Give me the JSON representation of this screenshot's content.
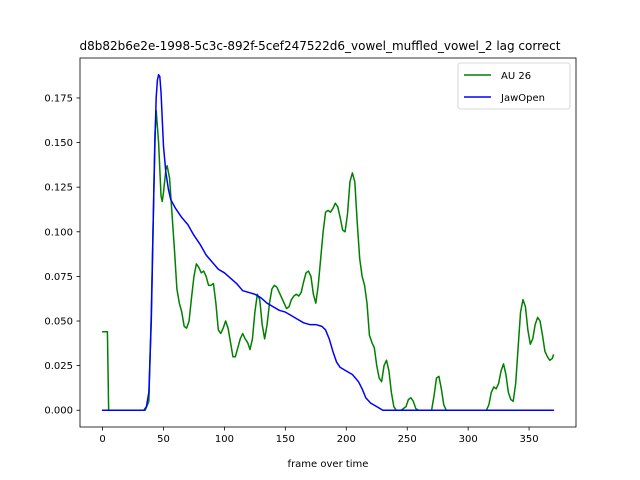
{
  "chart_data": {
    "type": "line",
    "title": "d8b82b6e2e-1998-5c3c-892f-5cef247522d6_vowel_muffled_vowel_2  lag correct",
    "xlabel": "frame over time",
    "ylabel": "",
    "xlim": [
      -18.5,
      388.5
    ],
    "ylim": [
      -0.0094,
      0.1974
    ],
    "x_ticks": [
      0,
      50,
      100,
      150,
      200,
      250,
      300,
      350
    ],
    "y_ticks": [
      0.0,
      0.025,
      0.05,
      0.075,
      0.1,
      0.125,
      0.15,
      0.175
    ],
    "y_tick_labels": [
      "0.000",
      "0.025",
      "0.050",
      "0.075",
      "0.100",
      "0.125",
      "0.150",
      "0.175"
    ],
    "grid": false,
    "legend_position": "upper-right",
    "series": [
      {
        "name": "AU 26",
        "color": "#008000",
        "points": [
          [
            0,
            0.044
          ],
          [
            4,
            0.044
          ],
          [
            5,
            0.0
          ],
          [
            10,
            0.0
          ],
          [
            20,
            0.0
          ],
          [
            30,
            0.0
          ],
          [
            35,
            0.0
          ],
          [
            38,
            0.005
          ],
          [
            40,
            0.055
          ],
          [
            42,
            0.12
          ],
          [
            43,
            0.155
          ],
          [
            44,
            0.168
          ],
          [
            46,
            0.15
          ],
          [
            48,
            0.12
          ],
          [
            49,
            0.117
          ],
          [
            50,
            0.122
          ],
          [
            52,
            0.135
          ],
          [
            53,
            0.137
          ],
          [
            55,
            0.13
          ],
          [
            57,
            0.11
          ],
          [
            59,
            0.09
          ],
          [
            61,
            0.068
          ],
          [
            63,
            0.06
          ],
          [
            65,
            0.055
          ],
          [
            67,
            0.047
          ],
          [
            69,
            0.046
          ],
          [
            71,
            0.05
          ],
          [
            73,
            0.063
          ],
          [
            75,
            0.075
          ],
          [
            77,
            0.082
          ],
          [
            79,
            0.08
          ],
          [
            81,
            0.077
          ],
          [
            83,
            0.078
          ],
          [
            85,
            0.075
          ],
          [
            87,
            0.07
          ],
          [
            89,
            0.07
          ],
          [
            91,
            0.071
          ],
          [
            93,
            0.06
          ],
          [
            95,
            0.045
          ],
          [
            97,
            0.043
          ],
          [
            99,
            0.046
          ],
          [
            101,
            0.05
          ],
          [
            103,
            0.046
          ],
          [
            105,
            0.038
          ],
          [
            107,
            0.03
          ],
          [
            109,
            0.03
          ],
          [
            111,
            0.035
          ],
          [
            113,
            0.04
          ],
          [
            115,
            0.043
          ],
          [
            117,
            0.04
          ],
          [
            119,
            0.038
          ],
          [
            121,
            0.034
          ],
          [
            123,
            0.04
          ],
          [
            125,
            0.055
          ],
          [
            127,
            0.065
          ],
          [
            129,
            0.062
          ],
          [
            131,
            0.048
          ],
          [
            133,
            0.04
          ],
          [
            135,
            0.048
          ],
          [
            137,
            0.06
          ],
          [
            139,
            0.068
          ],
          [
            141,
            0.07
          ],
          [
            143,
            0.069
          ],
          [
            145,
            0.066
          ],
          [
            147,
            0.063
          ],
          [
            149,
            0.06
          ],
          [
            151,
            0.057
          ],
          [
            153,
            0.058
          ],
          [
            155,
            0.062
          ],
          [
            157,
            0.064
          ],
          [
            159,
            0.065
          ],
          [
            161,
            0.064
          ],
          [
            163,
            0.066
          ],
          [
            165,
            0.072
          ],
          [
            167,
            0.077
          ],
          [
            169,
            0.078
          ],
          [
            171,
            0.075
          ],
          [
            173,
            0.065
          ],
          [
            175,
            0.06
          ],
          [
            177,
            0.07
          ],
          [
            179,
            0.085
          ],
          [
            181,
            0.1
          ],
          [
            183,
            0.111
          ],
          [
            185,
            0.112
          ],
          [
            187,
            0.111
          ],
          [
            189,
            0.113
          ],
          [
            191,
            0.116
          ],
          [
            193,
            0.114
          ],
          [
            195,
            0.108
          ],
          [
            197,
            0.101
          ],
          [
            199,
            0.1
          ],
          [
            201,
            0.11
          ],
          [
            203,
            0.128
          ],
          [
            205,
            0.133
          ],
          [
            207,
            0.128
          ],
          [
            209,
            0.105
          ],
          [
            211,
            0.085
          ],
          [
            213,
            0.075
          ],
          [
            215,
            0.07
          ],
          [
            217,
            0.06
          ],
          [
            219,
            0.042
          ],
          [
            221,
            0.038
          ],
          [
            223,
            0.035
          ],
          [
            225,
            0.025
          ],
          [
            227,
            0.018
          ],
          [
            229,
            0.016
          ],
          [
            231,
            0.025
          ],
          [
            233,
            0.028
          ],
          [
            235,
            0.022
          ],
          [
            237,
            0.01
          ],
          [
            239,
            0.002
          ],
          [
            241,
            0.0
          ],
          [
            245,
            0.0
          ],
          [
            249,
            0.002
          ],
          [
            251,
            0.006
          ],
          [
            253,
            0.007
          ],
          [
            255,
            0.005
          ],
          [
            257,
            0.001
          ],
          [
            259,
            0.0
          ],
          [
            265,
            0.0
          ],
          [
            270,
            0.0
          ],
          [
            272,
            0.008
          ],
          [
            274,
            0.018
          ],
          [
            276,
            0.019
          ],
          [
            278,
            0.012
          ],
          [
            280,
            0.003
          ],
          [
            282,
            0.0
          ],
          [
            290,
            0.0
          ],
          [
            300,
            0.0
          ],
          [
            310,
            0.0
          ],
          [
            315,
            0.0
          ],
          [
            317,
            0.003
          ],
          [
            319,
            0.01
          ],
          [
            321,
            0.013
          ],
          [
            323,
            0.012
          ],
          [
            325,
            0.015
          ],
          [
            327,
            0.022
          ],
          [
            329,
            0.026
          ],
          [
            331,
            0.02
          ],
          [
            333,
            0.01
          ],
          [
            335,
            0.006
          ],
          [
            337,
            0.005
          ],
          [
            339,
            0.015
          ],
          [
            341,
            0.035
          ],
          [
            343,
            0.055
          ],
          [
            345,
            0.062
          ],
          [
            347,
            0.058
          ],
          [
            349,
            0.045
          ],
          [
            351,
            0.037
          ],
          [
            353,
            0.04
          ],
          [
            355,
            0.048
          ],
          [
            357,
            0.052
          ],
          [
            359,
            0.05
          ],
          [
            361,
            0.042
          ],
          [
            363,
            0.033
          ],
          [
            365,
            0.03
          ],
          [
            367,
            0.028
          ],
          [
            369,
            0.029
          ],
          [
            370,
            0.031
          ]
        ]
      },
      {
        "name": "JawOpen",
        "color": "#0000ff",
        "points": [
          [
            0,
            0.0
          ],
          [
            10,
            0.0
          ],
          [
            20,
            0.0
          ],
          [
            30,
            0.0
          ],
          [
            34,
            0.0
          ],
          [
            36,
            0.002
          ],
          [
            38,
            0.01
          ],
          [
            40,
            0.05
          ],
          [
            42,
            0.12
          ],
          [
            43,
            0.15
          ],
          [
            44,
            0.175
          ],
          [
            45,
            0.185
          ],
          [
            46,
            0.188
          ],
          [
            47,
            0.187
          ],
          [
            48,
            0.178
          ],
          [
            49,
            0.163
          ],
          [
            50,
            0.148
          ],
          [
            52,
            0.133
          ],
          [
            54,
            0.124
          ],
          [
            56,
            0.118
          ],
          [
            60,
            0.113
          ],
          [
            65,
            0.108
          ],
          [
            70,
            0.104
          ],
          [
            75,
            0.098
          ],
          [
            80,
            0.093
          ],
          [
            85,
            0.087
          ],
          [
            90,
            0.083
          ],
          [
            95,
            0.079
          ],
          [
            100,
            0.077
          ],
          [
            105,
            0.074
          ],
          [
            110,
            0.071
          ],
          [
            115,
            0.067
          ],
          [
            120,
            0.066
          ],
          [
            125,
            0.065
          ],
          [
            130,
            0.063
          ],
          [
            135,
            0.06
          ],
          [
            140,
            0.058
          ],
          [
            145,
            0.056
          ],
          [
            150,
            0.055
          ],
          [
            155,
            0.053
          ],
          [
            160,
            0.051
          ],
          [
            165,
            0.049
          ],
          [
            170,
            0.048
          ],
          [
            175,
            0.048
          ],
          [
            180,
            0.047
          ],
          [
            183,
            0.045
          ],
          [
            186,
            0.04
          ],
          [
            189,
            0.033
          ],
          [
            192,
            0.027
          ],
          [
            195,
            0.024
          ],
          [
            200,
            0.022
          ],
          [
            205,
            0.02
          ],
          [
            210,
            0.016
          ],
          [
            213,
            0.012
          ],
          [
            216,
            0.007
          ],
          [
            220,
            0.004
          ],
          [
            225,
            0.002
          ],
          [
            230,
            0.0
          ],
          [
            240,
            0.0
          ],
          [
            260,
            0.0
          ],
          [
            280,
            0.0
          ],
          [
            300,
            0.0
          ],
          [
            320,
            0.0
          ],
          [
            340,
            0.0
          ],
          [
            360,
            0.0
          ],
          [
            370,
            0.0
          ]
        ]
      }
    ]
  }
}
